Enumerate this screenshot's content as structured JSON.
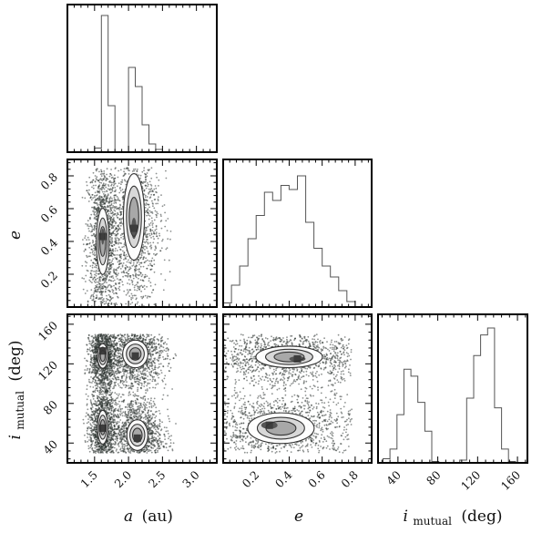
{
  "chart_data": {
    "type": "corner",
    "parameters": [
      {
        "key": "a",
        "label": "a (au)",
        "symbol": "a",
        "unit": "(au)",
        "range": [
          1.1,
          3.3
        ],
        "ticks": [
          1.5,
          2.0,
          2.5,
          3.0
        ],
        "tick_labels": [
          "1.5",
          "2.0",
          "2.5",
          "3.0"
        ]
      },
      {
        "key": "e",
        "label": "e",
        "symbol": "e",
        "unit": "",
        "range": [
          0.0,
          0.9
        ],
        "ticks": [
          0.2,
          0.4,
          0.6,
          0.8
        ],
        "tick_labels": [
          "0.2",
          "0.4",
          "0.6",
          "0.8"
        ]
      },
      {
        "key": "i_mutual",
        "label": "i_mutual (deg)",
        "symbol": "i",
        "subscript": "mutual",
        "unit": "(deg)",
        "range": [
          20,
          170
        ],
        "ticks": [
          40,
          80,
          120,
          160
        ],
        "tick_labels": [
          "40",
          "80",
          "120",
          "160"
        ]
      }
    ],
    "histograms": {
      "a": {
        "bin_edges": [
          1.5,
          1.6,
          1.7,
          1.8,
          1.9,
          2.0,
          2.1,
          2.2,
          2.3,
          2.4,
          2.5
        ],
        "counts": [
          0.03,
          1.0,
          0.34,
          0.0,
          0.0,
          0.62,
          0.48,
          0.2,
          0.06,
          0.02
        ]
      },
      "e": {
        "bin_edges": [
          0.0,
          0.05,
          0.1,
          0.15,
          0.2,
          0.25,
          0.3,
          0.35,
          0.4,
          0.45,
          0.5,
          0.55,
          0.6,
          0.65,
          0.7,
          0.75,
          0.8
        ],
        "counts": [
          0.03,
          0.16,
          0.3,
          0.5,
          0.67,
          0.84,
          0.78,
          0.89,
          0.86,
          0.96,
          0.62,
          0.43,
          0.3,
          0.22,
          0.12,
          0.04
        ]
      },
      "i_mutual": {
        "bin_edges": [
          25,
          32,
          39,
          46,
          53,
          60,
          67,
          74,
          81,
          88,
          95,
          102,
          109,
          116,
          123,
          130,
          137,
          144,
          151,
          158
        ],
        "counts": [
          0.03,
          0.1,
          0.35,
          0.68,
          0.63,
          0.44,
          0.23,
          0.01,
          0.0,
          0.0,
          0.0,
          0.02,
          0.47,
          0.78,
          0.93,
          0.98,
          0.4,
          0.1,
          0.01
        ]
      }
    },
    "density_2d": [
      {
        "x": "a",
        "y": "e",
        "clusters": [
          {
            "x": 1.62,
            "y": 0.4,
            "sx": 0.06,
            "sy": 0.13,
            "peak": [
              1.62,
              0.43
            ]
          },
          {
            "x": 2.08,
            "y": 0.55,
            "sx": 0.1,
            "sy": 0.17,
            "peak": [
              2.08,
              0.48
            ]
          }
        ],
        "scatter_extent": {
          "x": [
            1.3,
            2.7
          ],
          "y": [
            0.0,
            0.85
          ]
        },
        "contour_levels": [
          0.5,
          1.0,
          1.5,
          2.0
        ]
      },
      {
        "x": "a",
        "y": "i_mutual",
        "clusters": [
          {
            "x": 1.62,
            "y": 128,
            "sx": 0.05,
            "sy": 8,
            "peak": [
              1.62,
              133
            ]
          },
          {
            "x": 2.1,
            "y": 130,
            "sx": 0.12,
            "sy": 9,
            "peak": [
              2.1,
              128
            ]
          },
          {
            "x": 1.62,
            "y": 56,
            "sx": 0.05,
            "sy": 11,
            "peak": [
              1.62,
              55
            ]
          },
          {
            "x": 2.13,
            "y": 48,
            "sx": 0.1,
            "sy": 10,
            "peak": [
              2.13,
              45
            ]
          }
        ],
        "scatter_extent": {
          "x": [
            1.3,
            2.7
          ],
          "y": [
            30,
            150
          ]
        },
        "contour_levels": [
          0.5,
          1.0,
          1.5,
          2.0
        ]
      },
      {
        "x": "e",
        "y": "i_mutual",
        "clusters": [
          {
            "x": 0.4,
            "y": 127,
            "sx": 0.13,
            "sy": 7,
            "peak": [
              0.45,
              125
            ]
          },
          {
            "x": 0.35,
            "y": 55,
            "sx": 0.13,
            "sy": 10,
            "peak": [
              0.28,
              58
            ]
          }
        ],
        "scatter_extent": {
          "x": [
            0.0,
            0.78
          ],
          "y": [
            30,
            150
          ]
        },
        "contour_levels": [
          0.5,
          1.0,
          1.5,
          2.0
        ]
      }
    ],
    "colors": {
      "points": "#2f3633",
      "contour": "#333333",
      "fill_dark": "#555555",
      "frame": "#000000"
    }
  }
}
